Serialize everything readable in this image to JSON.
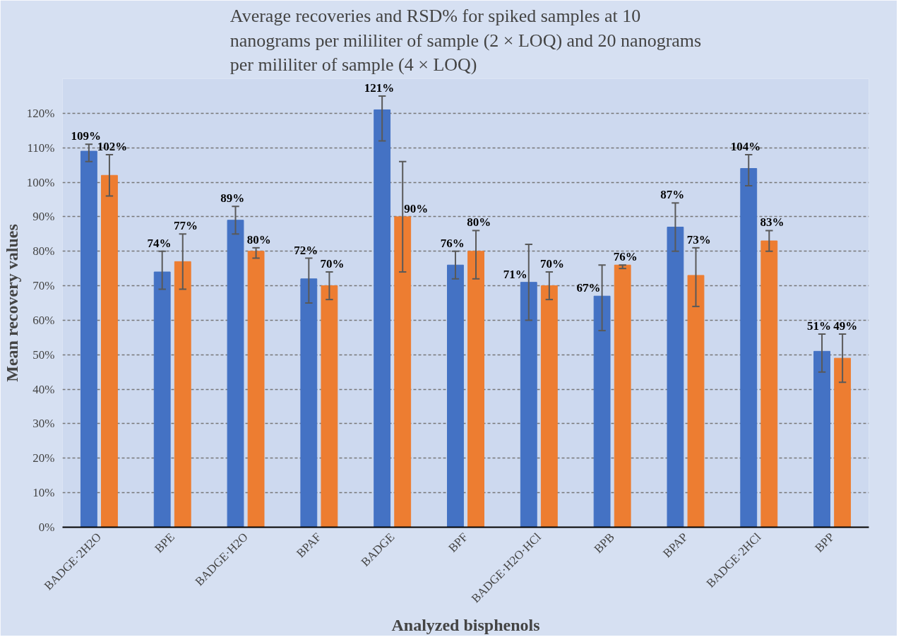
{
  "chart_data": {
    "type": "bar",
    "title": "Average recoveries and RSD% for spiked samples at 10\nnanograms per mililiter of sample (2 × LOQ) and 20 nanograms\nper mililiter of sample (4 × LOQ)",
    "xlabel": "Analyzed bisphenols",
    "ylabel": "Mean recovery values",
    "categories": [
      "BADGE·2H2O",
      "BPE",
      "BADGE·H2O",
      "BPAF",
      "BADGE",
      "BPF",
      "BADGE·H2O·HCl",
      "BPB",
      "BPAP",
      "BADGE·2HCl",
      "BPP"
    ],
    "series": [
      {
        "color": "#4472c4",
        "values": [
          109,
          74,
          89,
          72,
          121,
          76,
          71,
          67,
          87,
          104,
          51
        ],
        "value_labels": [
          "109%",
          "74%",
          "89%",
          "72%",
          "121%",
          "76%",
          "71%",
          "67%",
          "87%",
          "104%",
          "51%"
        ],
        "errors": [
          [
            106,
            111
          ],
          [
            69,
            80
          ],
          [
            85,
            93
          ],
          [
            65,
            78
          ],
          [
            112,
            125
          ],
          [
            72,
            80
          ],
          [
            60,
            82
          ],
          [
            57,
            76
          ],
          [
            80,
            94
          ],
          [
            99,
            108
          ],
          [
            45,
            56
          ]
        ]
      },
      {
        "color": "#ed7d31",
        "values": [
          102,
          77,
          80,
          70,
          90,
          80,
          70,
          76,
          73,
          83,
          49
        ],
        "value_labels": [
          "102%",
          "77%",
          "80%",
          "70%",
          "90%",
          "80%",
          "70%",
          "76%",
          "73%",
          "83%",
          "49%"
        ],
        "errors": [
          [
            96,
            108
          ],
          [
            69,
            85
          ],
          [
            78,
            81
          ],
          [
            66,
            74
          ],
          [
            74,
            106
          ],
          [
            72,
            86
          ],
          [
            66,
            74
          ],
          [
            75,
            76
          ],
          [
            64,
            81
          ],
          [
            80,
            86
          ],
          [
            42,
            56
          ]
        ]
      }
    ],
    "ylim": [
      0,
      130
    ],
    "yticks": [
      {
        "value": 0,
        "label": "0%"
      },
      {
        "value": 10,
        "label": "10%"
      },
      {
        "value": 20,
        "label": "20%"
      },
      {
        "value": 30,
        "label": "30%"
      },
      {
        "value": 40,
        "label": "40%"
      },
      {
        "value": 50,
        "label": "50%"
      },
      {
        "value": 60,
        "label": "60%"
      },
      {
        "value": 70,
        "label": "70%"
      },
      {
        "value": 80,
        "label": "80%"
      },
      {
        "value": 90,
        "label": "90%"
      },
      {
        "value": 100,
        "label": "100%"
      },
      {
        "value": 110,
        "label": "110%"
      },
      {
        "value": 120,
        "label": "120%"
      }
    ],
    "grid": "y"
  }
}
